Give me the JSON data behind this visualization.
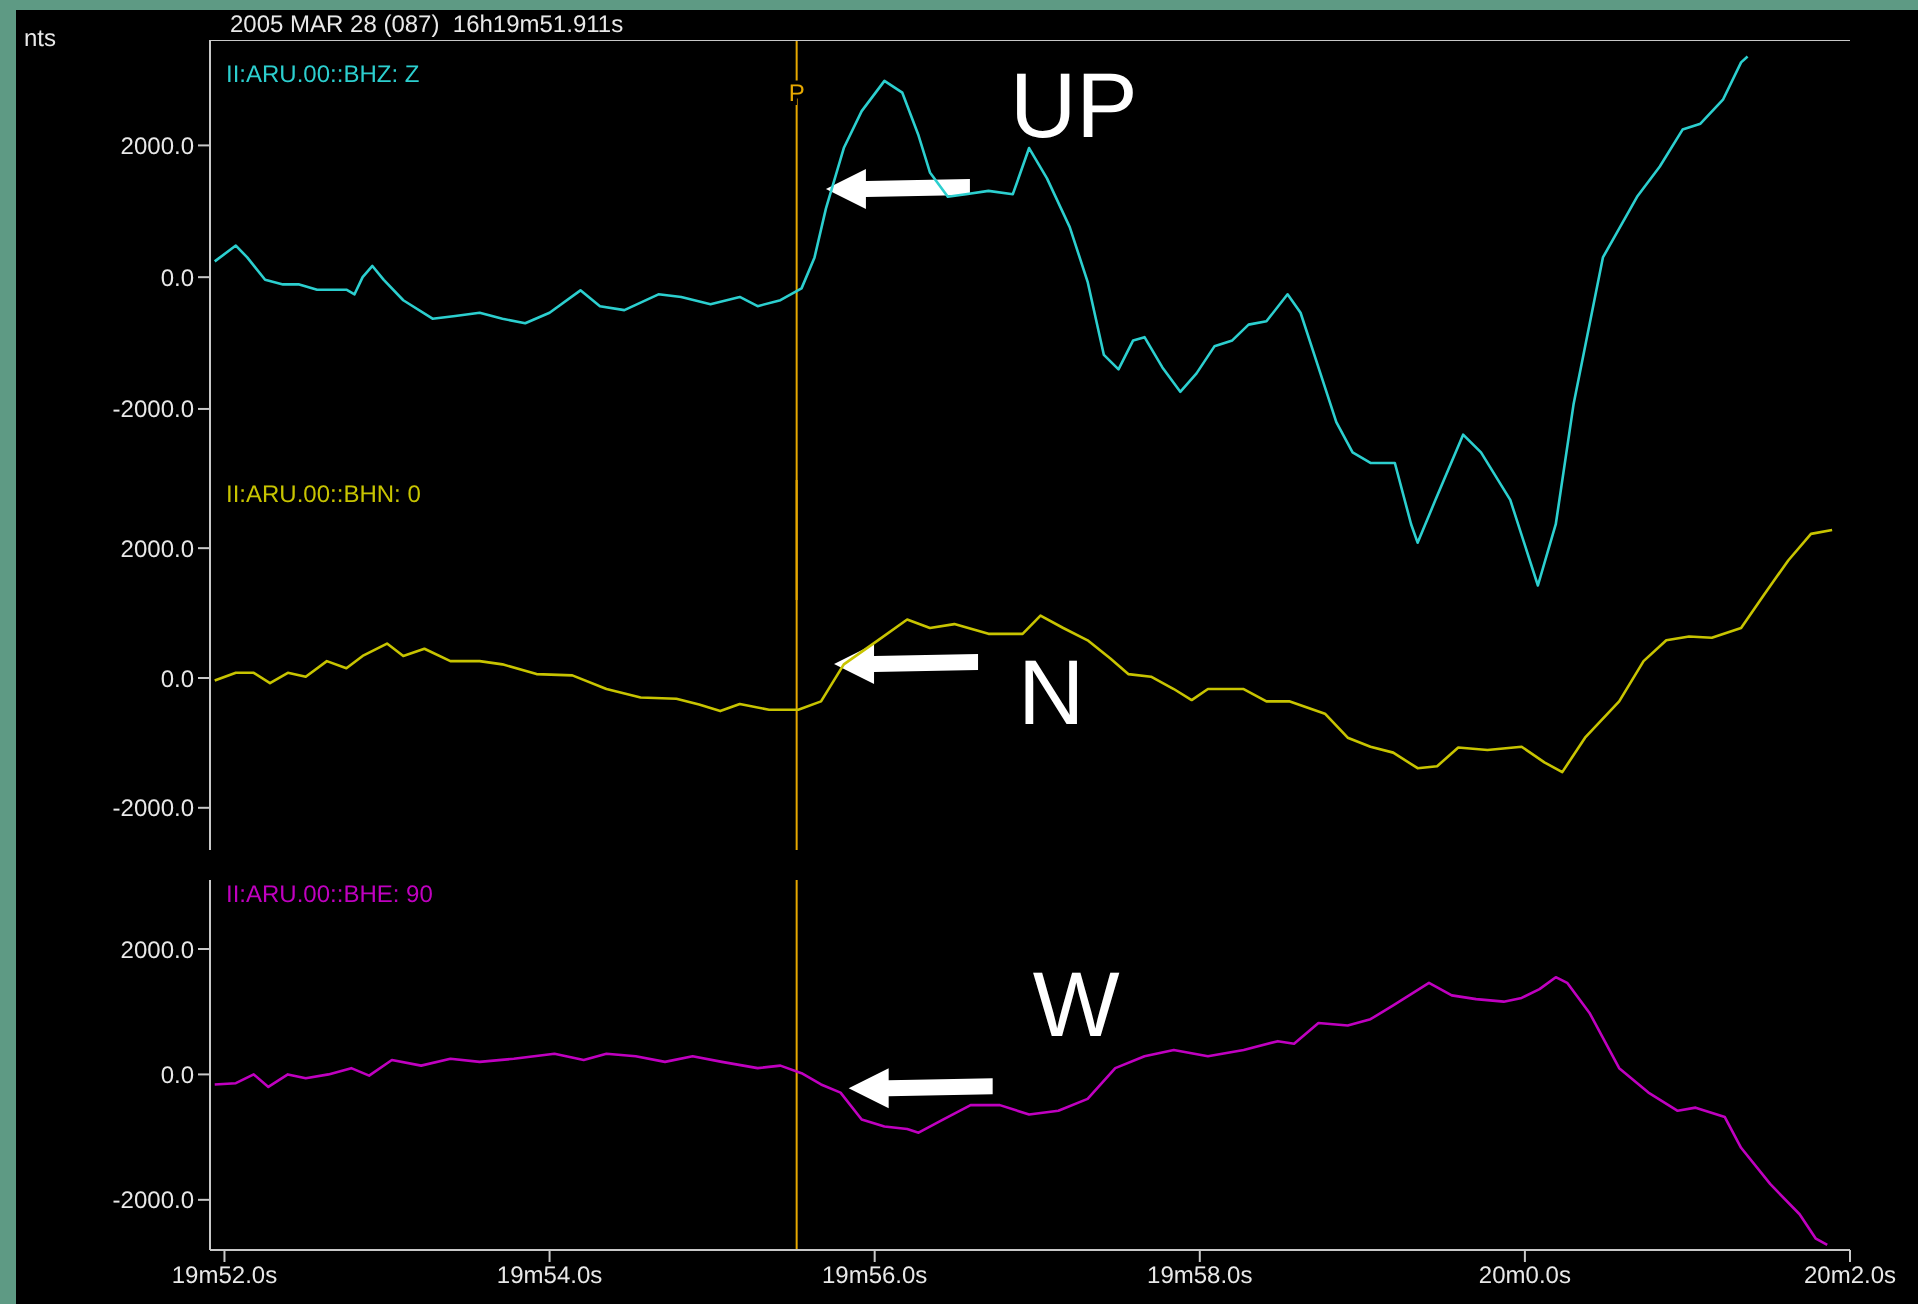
{
  "chart_data": [
    {
      "type": "line",
      "title": "2005 MAR 28 (087)  16h19m51.911s",
      "ylabel": "nts",
      "xlim": [
        "2005-03-28T16:19:51.911",
        "2005-03-28T16:20:02.000"
      ],
      "tick_labels": "y",
      "ylim": [
        -4900,
        3600
      ],
      "yticks": [
        {
          "value": 2000,
          "label": "2000.0"
        },
        {
          "value": 0,
          "label": "0.0"
        },
        {
          "value": -2000,
          "label": "-2000.0"
        }
      ],
      "marker": "none",
      "line_style": "solid",
      "grid": false,
      "ref_lines": [
        {
          "axis": "x",
          "value": "2005-03-28T16:19:55.520",
          "label": "P",
          "color": "#e6a800"
        }
      ],
      "annotations": [
        {
          "text": "UP",
          "x": "2005-03-28T16:19:55.700",
          "y": 1360
        }
      ],
      "series": [
        {
          "name": "II:ARU.00::BHZ: Z",
          "color": "#2ccfcf",
          "x": [
            "2005-03-28T16:19:51.940",
            "2005-03-28T16:19:52.070",
            "2005-03-28T16:19:52.140",
            "2005-03-28T16:19:52.250",
            "2005-03-28T16:19:52.360",
            "2005-03-28T16:19:52.460",
            "2005-03-28T16:19:52.570",
            "2005-03-28T16:19:52.750",
            "2005-03-28T16:19:52.800",
            "2005-03-28T16:19:52.850",
            "2005-03-28T16:19:52.910",
            "2005-03-28T16:19:52.980",
            "2005-03-28T16:19:53.100",
            "2005-03-28T16:19:53.280",
            "2005-03-28T16:19:53.420",
            "2005-03-28T16:19:53.570",
            "2005-03-28T16:19:53.710",
            "2005-03-28T16:19:53.850",
            "2005-03-28T16:19:54.000",
            "2005-03-28T16:19:54.190",
            "2005-03-28T16:19:54.310",
            "2005-03-28T16:19:54.460",
            "2005-03-28T16:19:54.670",
            "2005-03-28T16:19:54.810",
            "2005-03-28T16:19:54.990",
            "2005-03-28T16:19:55.170",
            "2005-03-28T16:19:55.280",
            "2005-03-28T16:19:55.420",
            "2005-03-28T16:19:55.550",
            "2005-03-28T16:19:55.630",
            "2005-03-28T16:19:55.700",
            "2005-03-28T16:19:55.810",
            "2005-03-28T16:19:55.920",
            "2005-03-28T16:19:56.060",
            "2005-03-28T16:19:56.170",
            "2005-03-28T16:19:56.270",
            "2005-03-28T16:19:56.340",
            "2005-03-28T16:19:56.450",
            "2005-03-28T16:19:56.560",
            "2005-03-28T16:19:56.700",
            "2005-03-28T16:19:56.850",
            "2005-03-28T16:19:56.950",
            "2005-03-28T16:19:57.060",
            "2005-03-28T16:19:57.200",
            "2005-03-28T16:19:57.310",
            "2005-03-28T16:19:57.410",
            "2005-03-28T16:19:57.500",
            "2005-03-28T16:19:57.590",
            "2005-03-28T16:19:57.660",
            "2005-03-28T16:19:57.770",
            "2005-03-28T16:19:57.880",
            "2005-03-28T16:19:57.980",
            "2005-03-28T16:19:58.090",
            "2005-03-28T16:19:58.200",
            "2005-03-28T16:19:58.300",
            "2005-03-28T16:19:58.410",
            "2005-03-28T16:19:58.540",
            "2005-03-28T16:19:58.620",
            "2005-03-28T16:19:58.730",
            "2005-03-28T16:19:58.840",
            "2005-03-28T16:19:58.940",
            "2005-03-28T16:19:59.050",
            "2005-03-28T16:19:59.200",
            "2005-03-28T16:19:59.300",
            "2005-03-28T16:19:59.340",
            "2005-03-28T16:19:59.450",
            "2005-03-28T16:19:59.620",
            "2005-03-28T16:19:59.730",
            "2005-03-28T16:19:59.910",
            "2005-03-28T16:20:00.080",
            "2005-03-28T16:20:00.190",
            "2005-03-28T16:20:00.300",
            "2005-03-28T16:20:00.480",
            "2005-03-28T16:20:00.690",
            "2005-03-28T16:20:00.830",
            "2005-03-28T16:20:00.970",
            "2005-03-28T16:20:01.080",
            "2005-03-28T16:20:01.220",
            "2005-03-28T16:20:01.330",
            "2005-03-28T16:20:01.370"
          ],
          "values": [
            240,
            480,
            300,
            -40,
            -110,
            -110,
            -190,
            -190,
            -260,
            0,
            170,
            -40,
            -350,
            -630,
            -590,
            -540,
            -630,
            -700,
            -540,
            -200,
            -440,
            -500,
            -260,
            -300,
            -410,
            -300,
            -440,
            -350,
            -170,
            300,
            1040,
            1960,
            2520,
            2980,
            2800,
            2150,
            1590,
            1220,
            1260,
            1310,
            1260,
            1960,
            1500,
            760,
            -70,
            -1180,
            -1400,
            -960,
            -910,
            -1370,
            -1740,
            -1460,
            -1050,
            -960,
            -720,
            -670,
            -260,
            -540,
            -1370,
            -2200,
            -2660,
            -2820,
            -2820,
            -3750,
            -4030,
            -3380,
            -2390,
            -2660,
            -3380,
            -4680,
            -3750,
            -1920,
            300,
            1220,
            1680,
            2240,
            2330,
            2700,
            3260,
            3350
          ]
        }
      ]
    },
    {
      "type": "line",
      "xlim": [
        "2005-03-28T16:19:51.911",
        "2005-03-28T16:20:02.000"
      ],
      "tick_labels": "y",
      "ylim": [
        -2650,
        3050
      ],
      "yticks": [
        {
          "value": 2000,
          "label": "2000.0"
        },
        {
          "value": 0,
          "label": "0.0"
        },
        {
          "value": -2000,
          "label": "-2000.0"
        }
      ],
      "marker": "none",
      "line_style": "solid",
      "grid": false,
      "ref_lines": [
        {
          "axis": "x",
          "value": "2005-03-28T16:19:55.520",
          "label": null,
          "color": "#e6a800"
        }
      ],
      "annotations": [
        {
          "text": "N",
          "x": "2005-03-28T16:19:55.750",
          "y": 215
        }
      ],
      "series": [
        {
          "name": "II:ARU.00::BHN: 0",
          "color": "#c8c400",
          "x": [
            "2005-03-28T16:19:51.940",
            "2005-03-28T16:19:52.070",
            "2005-03-28T16:19:52.180",
            "2005-03-28T16:19:52.280",
            "2005-03-28T16:19:52.390",
            "2005-03-28T16:19:52.500",
            "2005-03-28T16:19:52.630",
            "2005-03-28T16:19:52.750",
            "2005-03-28T16:19:52.850",
            "2005-03-28T16:19:53.000",
            "2005-03-28T16:19:53.100",
            "2005-03-28T16:19:53.230",
            "2005-03-28T16:19:53.390",
            "2005-03-28T16:19:53.570",
            "2005-03-28T16:19:53.710",
            "2005-03-28T16:19:53.920",
            "2005-03-28T16:19:54.140",
            "2005-03-28T16:19:54.350",
            "2005-03-28T16:19:54.560",
            "2005-03-28T16:19:54.780",
            "2005-03-28T16:19:54.920",
            "2005-03-28T16:19:55.050",
            "2005-03-28T16:19:55.170",
            "2005-03-28T16:19:55.350",
            "2005-03-28T16:19:55.530",
            "2005-03-28T16:19:55.670",
            "2005-03-28T16:19:55.810",
            "2005-03-28T16:19:56.020",
            "2005-03-28T16:19:56.200",
            "2005-03-28T16:19:56.340",
            "2005-03-28T16:19:56.490",
            "2005-03-28T16:19:56.700",
            "2005-03-28T16:19:56.910",
            "2005-03-28T16:19:57.020",
            "2005-03-28T16:19:57.160",
            "2005-03-28T16:19:57.310",
            "2005-03-28T16:19:57.450",
            "2005-03-28T16:19:57.560",
            "2005-03-28T16:19:57.700",
            "2005-03-28T16:19:57.840",
            "2005-03-28T16:19:57.950",
            "2005-03-28T16:19:58.050",
            "2005-03-28T16:19:58.270",
            "2005-03-28T16:19:58.410",
            "2005-03-28T16:19:58.550",
            "2005-03-28T16:19:58.770",
            "2005-03-28T16:19:58.910",
            "2005-03-28T16:19:59.050",
            "2005-03-28T16:19:59.190",
            "2005-03-28T16:19:59.340",
            "2005-03-28T16:19:59.460",
            "2005-03-28T16:19:59.590",
            "2005-03-28T16:19:59.770",
            "2005-03-28T16:19:59.980",
            "2005-03-28T16:20:00.120",
            "2005-03-28T16:20:00.230",
            "2005-03-28T16:20:00.370",
            "2005-03-28T16:20:00.580",
            "2005-03-28T16:20:00.730",
            "2005-03-28T16:20:00.870",
            "2005-03-28T16:20:01.010",
            "2005-03-28T16:20:01.150",
            "2005-03-28T16:20:01.330",
            "2005-03-28T16:20:01.470",
            "2005-03-28T16:20:01.620",
            "2005-03-28T16:20:01.760",
            "2005-03-28T16:20:01.890"
          ],
          "values": [
            -40,
            80,
            80,
            -80,
            80,
            20,
            260,
            150,
            340,
            530,
            340,
            450,
            260,
            260,
            210,
            60,
            40,
            -170,
            -300,
            -320,
            -410,
            -510,
            -400,
            -490,
            -490,
            -360,
            210,
            580,
            900,
            770,
            830,
            680,
            680,
            960,
            770,
            580,
            300,
            60,
            20,
            -170,
            -340,
            -170,
            -170,
            -360,
            -360,
            -550,
            -920,
            -1060,
            -1150,
            -1390,
            -1360,
            -1070,
            -1110,
            -1060,
            -1300,
            -1450,
            -920,
            -360,
            260,
            580,
            640,
            620,
            770,
            1280,
            1810,
            2220,
            2280
          ]
        }
      ]
    },
    {
      "type": "line",
      "xlim": [
        "2005-03-28T16:19:51.911",
        "2005-03-28T16:20:02.000"
      ],
      "xticks": [
        {
          "value": "2005-03-28T16:19:52",
          "label": "19m52.0s"
        },
        {
          "value": "2005-03-28T16:19:54",
          "label": "19m54.0s"
        },
        {
          "value": "2005-03-28T16:19:56",
          "label": "19m56.0s"
        },
        {
          "value": "2005-03-28T16:19:58",
          "label": "19m58.0s"
        },
        {
          "value": "2005-03-28T16:20:00",
          "label": "20m0.0s"
        },
        {
          "value": "2005-03-28T16:20:02",
          "label": "20m2.0s"
        }
      ],
      "ylim": [
        -2800,
        3100
      ],
      "yticks": [
        {
          "value": 2000,
          "label": "2000.0"
        },
        {
          "value": 0,
          "label": "0.0"
        },
        {
          "value": -2000,
          "label": "-2000.0"
        }
      ],
      "marker": "none",
      "line_style": "solid",
      "grid": false,
      "ref_lines": [
        {
          "axis": "x",
          "value": "2005-03-28T16:19:55.520",
          "label": null,
          "color": "#e6a800"
        }
      ],
      "annotations": [
        {
          "text": "W",
          "x": "2005-03-28T16:19:55.840",
          "y": -220
        }
      ],
      "series": [
        {
          "name": "II:ARU.00::BHE: 90",
          "color": "#c000c0",
          "x": [
            "2005-03-28T16:19:51.940",
            "2005-03-28T16:19:52.070",
            "2005-03-28T16:19:52.180",
            "2005-03-28T16:19:52.270",
            "2005-03-28T16:19:52.390",
            "2005-03-28T16:19:52.500",
            "2005-03-28T16:19:52.640",
            "2005-03-28T16:19:52.780",
            "2005-03-28T16:19:52.890",
            "2005-03-28T16:19:53.030",
            "2005-03-28T16:19:53.210",
            "2005-03-28T16:19:53.390",
            "2005-03-28T16:19:53.570",
            "2005-03-28T16:19:53.780",
            "2005-03-28T16:19:54.030",
            "2005-03-28T16:19:54.210",
            "2005-03-28T16:19:54.350",
            "2005-03-28T16:19:54.530",
            "2005-03-28T16:19:54.710",
            "2005-03-28T16:19:54.880",
            "2005-03-28T16:19:55.060",
            "2005-03-28T16:19:55.280",
            "2005-03-28T16:19:55.420",
            "2005-03-28T16:19:55.550",
            "2005-03-28T16:19:55.670",
            "2005-03-28T16:19:55.790",
            "2005-03-28T16:19:55.920",
            "2005-03-28T16:19:56.060",
            "2005-03-28T16:19:56.200",
            "2005-03-28T16:19:56.270",
            "2005-03-28T16:19:56.420",
            "2005-03-28T16:19:56.590",
            "2005-03-28T16:19:56.770",
            "2005-03-28T16:19:56.950",
            "2005-03-28T16:19:57.130",
            "2005-03-28T16:19:57.310",
            "2005-03-28T16:19:57.480",
            "2005-03-28T16:19:57.660",
            "2005-03-28T16:19:57.840",
            "2005-03-28T16:19:58.050",
            "2005-03-28T16:19:58.270",
            "2005-03-28T16:19:58.480",
            "2005-03-28T16:19:58.580",
            "2005-03-28T16:19:58.730",
            "2005-03-28T16:19:58.910",
            "2005-03-28T16:19:59.050",
            "2005-03-28T16:19:59.190",
            "2005-03-28T16:19:59.410",
            "2005-03-28T16:19:59.550",
            "2005-03-28T16:19:59.700",
            "2005-03-28T16:19:59.870",
            "2005-03-28T16:19:59.980",
            "2005-03-28T16:20:00.090",
            "2005-03-28T16:20:00.190",
            "2005-03-28T16:20:00.260",
            "2005-03-28T16:20:00.400",
            "2005-03-28T16:20:00.580",
            "2005-03-28T16:20:00.760",
            "2005-03-28T16:20:00.940",
            "2005-03-28T16:20:01.050",
            "2005-03-28T16:20:01.230",
            "2005-03-28T16:20:01.330",
            "2005-03-28T16:20:01.510",
            "2005-03-28T16:20:01.690",
            "2005-03-28T16:20:01.790",
            "2005-03-28T16:20:01.860"
          ],
          "values": [
            -160,
            -140,
            0,
            -200,
            0,
            -60,
            0,
            100,
            -20,
            230,
            140,
            250,
            200,
            250,
            330,
            230,
            330,
            290,
            200,
            290,
            200,
            100,
            140,
            20,
            -160,
            -290,
            -720,
            -830,
            -870,
            -930,
            -720,
            -490,
            -490,
            -640,
            -580,
            -390,
            100,
            290,
            390,
            290,
            390,
            530,
            490,
            820,
            780,
            880,
            1100,
            1460,
            1260,
            1200,
            1160,
            1220,
            1360,
            1550,
            1460,
            970,
            100,
            -290,
            -580,
            -530,
            -680,
            -1170,
            -1750,
            -2230,
            -2620,
            -2720
          ]
        }
      ]
    }
  ]
}
